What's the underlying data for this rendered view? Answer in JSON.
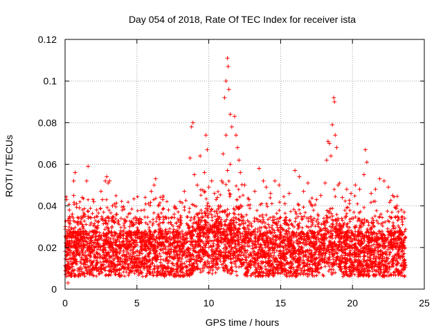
{
  "chart_data": {
    "type": "scatter",
    "title": "Day 054 of 2018, Rate Of TEC Index for receiver ista",
    "xlabel": "GPS time / hours",
    "ylabel": "ROTI / TECUs",
    "xlim": [
      0,
      25
    ],
    "ylim": [
      0,
      0.12
    ],
    "xticks": [
      0,
      5,
      10,
      15,
      20,
      25
    ],
    "xtick_labels": [
      "0",
      "5",
      "10",
      "15",
      "20",
      "25"
    ],
    "yticks": [
      0,
      0.02,
      0.04,
      0.06,
      0.08,
      0.1,
      0.12
    ],
    "ytick_labels": [
      "0",
      "0.02",
      "0.04",
      "0.06",
      "0.08",
      "0.1",
      "0.12"
    ],
    "grid": true,
    "marker": "+",
    "color": "#ff0000",
    "series": [
      {
        "name": "ROTI",
        "notes": "dense cloud of points spanning 0 to ~23.7 h, mostly 0.005-0.03 TECUs",
        "points": [
          [
            0.1,
            0.043
          ],
          [
            0.2,
            0.033
          ],
          [
            0.3,
            0.038
          ],
          [
            0.5,
            0.036
          ],
          [
            0.6,
            0.045
          ],
          [
            0.8,
            0.041
          ],
          [
            1.0,
            0.039
          ],
          [
            1.2,
            0.044
          ],
          [
            1.4,
            0.035
          ],
          [
            0.6,
            0.052
          ],
          [
            0.7,
            0.056
          ],
          [
            1.5,
            0.052
          ],
          [
            1.6,
            0.059
          ],
          [
            2.0,
            0.042
          ],
          [
            2.2,
            0.038
          ],
          [
            2.5,
            0.047
          ],
          [
            2.6,
            0.043
          ],
          [
            2.8,
            0.052
          ],
          [
            2.9,
            0.054
          ],
          [
            3.0,
            0.051
          ],
          [
            3.1,
            0.052
          ],
          [
            3.3,
            0.04
          ],
          [
            3.6,
            0.036
          ],
          [
            3.9,
            0.034
          ],
          [
            4.2,
            0.033
          ],
          [
            4.5,
            0.03
          ],
          [
            4.8,
            0.031
          ],
          [
            5.2,
            0.034
          ],
          [
            5.5,
            0.038
          ],
          [
            5.8,
            0.041
          ],
          [
            6.0,
            0.047
          ],
          [
            6.2,
            0.05
          ],
          [
            6.3,
            0.053
          ],
          [
            6.5,
            0.04
          ],
          [
            6.8,
            0.043
          ],
          [
            7.2,
            0.038
          ],
          [
            7.6,
            0.036
          ],
          [
            8.0,
            0.042
          ],
          [
            8.3,
            0.047
          ],
          [
            8.7,
            0.063
          ],
          [
            8.8,
            0.078
          ],
          [
            8.9,
            0.08
          ],
          [
            9.0,
            0.055
          ],
          [
            9.2,
            0.05
          ],
          [
            9.4,
            0.064
          ],
          [
            9.7,
            0.056
          ],
          [
            9.8,
            0.074
          ],
          [
            9.9,
            0.067
          ],
          [
            10.0,
            0.049
          ],
          [
            10.2,
            0.052
          ],
          [
            10.4,
            0.046
          ],
          [
            10.6,
            0.044
          ],
          [
            10.8,
            0.04
          ],
          [
            10.9,
            0.052
          ],
          [
            11.0,
            0.065
          ],
          [
            11.1,
            0.092
          ],
          [
            11.2,
            0.1
          ],
          [
            11.3,
            0.111
          ],
          [
            11.35,
            0.107
          ],
          [
            11.4,
            0.096
          ],
          [
            11.5,
            0.084
          ],
          [
            11.6,
            0.078
          ],
          [
            11.2,
            0.074
          ],
          [
            11.3,
            0.057
          ],
          [
            11.5,
            0.06
          ],
          [
            11.8,
            0.083
          ],
          [
            11.9,
            0.074
          ],
          [
            12.0,
            0.068
          ],
          [
            12.1,
            0.062
          ],
          [
            12.2,
            0.056
          ],
          [
            12.5,
            0.05
          ],
          [
            12.8,
            0.043
          ],
          [
            13.2,
            0.047
          ],
          [
            13.5,
            0.058
          ],
          [
            13.8,
            0.052
          ],
          [
            14.0,
            0.049
          ],
          [
            14.3,
            0.046
          ],
          [
            14.6,
            0.052
          ],
          [
            14.9,
            0.05
          ],
          [
            15.3,
            0.041
          ],
          [
            15.6,
            0.046
          ],
          [
            16.0,
            0.057
          ],
          [
            16.3,
            0.054
          ],
          [
            16.6,
            0.047
          ],
          [
            16.9,
            0.051
          ],
          [
            17.2,
            0.04
          ],
          [
            17.5,
            0.043
          ],
          [
            17.8,
            0.045
          ],
          [
            18.1,
            0.051
          ],
          [
            18.2,
            0.062
          ],
          [
            18.3,
            0.071
          ],
          [
            18.4,
            0.07
          ],
          [
            18.5,
            0.064
          ],
          [
            18.6,
            0.079
          ],
          [
            18.7,
            0.092
          ],
          [
            18.75,
            0.09
          ],
          [
            18.8,
            0.074
          ],
          [
            18.9,
            0.068
          ],
          [
            19.0,
            0.05
          ],
          [
            19.3,
            0.044
          ],
          [
            19.6,
            0.048
          ],
          [
            19.9,
            0.046
          ],
          [
            20.2,
            0.05
          ],
          [
            20.5,
            0.048
          ],
          [
            20.8,
            0.055
          ],
          [
            20.9,
            0.067
          ],
          [
            21.0,
            0.061
          ],
          [
            21.3,
            0.046
          ],
          [
            21.6,
            0.048
          ],
          [
            21.9,
            0.053
          ],
          [
            22.2,
            0.052
          ],
          [
            22.5,
            0.049
          ],
          [
            22.8,
            0.045
          ],
          [
            23.1,
            0.04
          ],
          [
            23.4,
            0.038
          ],
          [
            23.6,
            0.037
          ],
          [
            0.2,
            0.003
          ]
        ]
      }
    ]
  }
}
